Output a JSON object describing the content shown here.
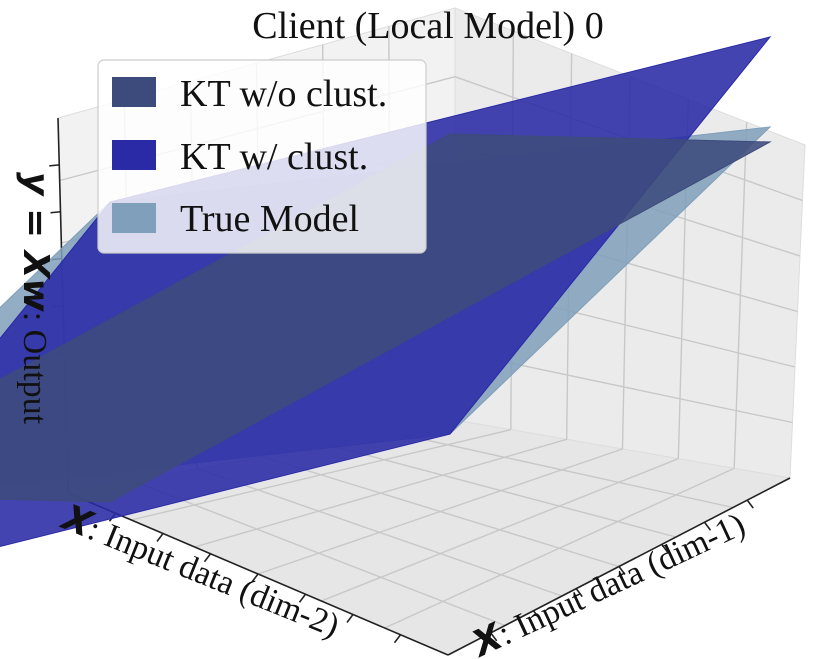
{
  "chart_data": {
    "type": "surface3d",
    "title": "Client (Local Model) 0",
    "xlabel": {
      "symbol": "X",
      "text": ": Input data (dim-1)"
    },
    "ylabel": {
      "symbol": "X",
      "text": ": Input data (dim-2)"
    },
    "zlabel": {
      "symbol": "y = Xw",
      "text": ": Output"
    },
    "legend_position": "top-left",
    "grid": true,
    "series": [
      {
        "name": "KT w/o clust.",
        "color": "#3d4b7c",
        "slope_dim1": 1.0,
        "slope_dim2": 1.0
      },
      {
        "name": "KT w/ clust.",
        "color": "#2a2aa6",
        "slope_dim1": 0.35,
        "slope_dim2": -0.35
      },
      {
        "name": "True Model",
        "color": "#7f9fba",
        "slope_dim1": 0.05,
        "slope_dim2": -0.05
      }
    ]
  }
}
